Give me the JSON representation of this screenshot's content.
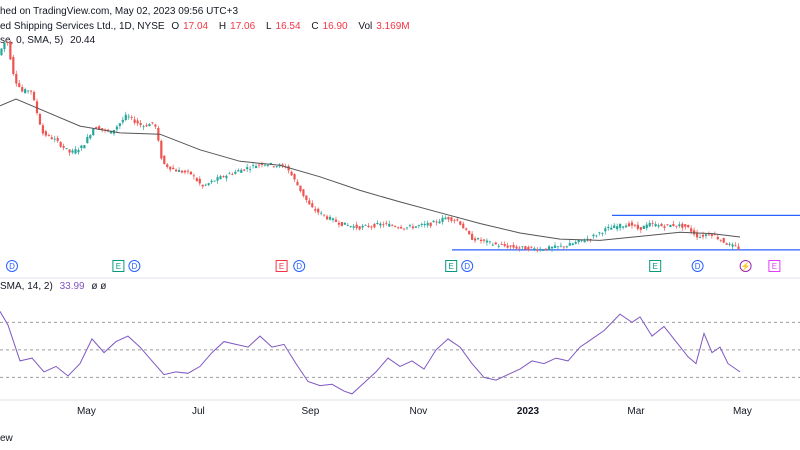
{
  "header": {
    "published": "hed on TradingView.com, May 02, 2023 09:56 UTC+3",
    "symbol": "ed Shipping Services Ltd., 1D, NYSE",
    "open_label": "O",
    "open": "17.04",
    "high_label": "H",
    "high": "17.06",
    "low_label": "L",
    "low": "16.54",
    "close_label": "C",
    "close": "16.90",
    "vol_label": "Vol",
    "vol": "3.169M",
    "ma_label": "se, 0, SMA, 5)",
    "ma_value": "20.44",
    "rsi_label": "SMA, 14, 2)",
    "rsi_value": "33.99",
    "rsi_extra": "ø ø"
  },
  "footer": {
    "text": "ew"
  },
  "colors": {
    "up": "#26a69a",
    "down": "#ef5350",
    "ma": "#555555",
    "rsi": "#7e57c2",
    "channel": "#2962ff",
    "dashed": "#9e9e9e"
  },
  "chart_data": [
    {
      "type": "candlestick",
      "x_labels": [
        "May",
        "Jul",
        "Sep",
        "Nov",
        "2023",
        "Mar",
        "May"
      ],
      "price_path": [
        {
          "t": 0.0,
          "p": 41.5
        },
        {
          "t": 0.01,
          "p": 44
        },
        {
          "t": 0.02,
          "p": 38
        },
        {
          "t": 0.03,
          "p": 36
        },
        {
          "t": 0.04,
          "p": 36.5
        },
        {
          "t": 0.055,
          "p": 30
        },
        {
          "t": 0.07,
          "p": 29
        },
        {
          "t": 0.09,
          "p": 27
        },
        {
          "t": 0.105,
          "p": 28
        },
        {
          "t": 0.12,
          "p": 31
        },
        {
          "t": 0.14,
          "p": 30
        },
        {
          "t": 0.16,
          "p": 32.5
        },
        {
          "t": 0.18,
          "p": 31
        },
        {
          "t": 0.195,
          "p": 31.5
        },
        {
          "t": 0.205,
          "p": 25.5
        },
        {
          "t": 0.22,
          "p": 24.5
        },
        {
          "t": 0.24,
          "p": 24
        },
        {
          "t": 0.255,
          "p": 22
        },
        {
          "t": 0.27,
          "p": 23
        },
        {
          "t": 0.29,
          "p": 24
        },
        {
          "t": 0.31,
          "p": 24.8
        },
        {
          "t": 0.33,
          "p": 25.5
        },
        {
          "t": 0.345,
          "p": 25.2
        },
        {
          "t": 0.36,
          "p": 25
        },
        {
          "t": 0.375,
          "p": 22
        },
        {
          "t": 0.39,
          "p": 19
        },
        {
          "t": 0.41,
          "p": 17.5
        },
        {
          "t": 0.43,
          "p": 16.5
        },
        {
          "t": 0.45,
          "p": 16
        },
        {
          "t": 0.48,
          "p": 16.5
        },
        {
          "t": 0.51,
          "p": 16
        },
        {
          "t": 0.54,
          "p": 16.5
        },
        {
          "t": 0.56,
          "p": 17.5
        },
        {
          "t": 0.575,
          "p": 17
        },
        {
          "t": 0.59,
          "p": 14.5
        },
        {
          "t": 0.62,
          "p": 13.5
        },
        {
          "t": 0.65,
          "p": 13
        },
        {
          "t": 0.68,
          "p": 12.8
        },
        {
          "t": 0.71,
          "p": 13.3
        },
        {
          "t": 0.74,
          "p": 14.5
        },
        {
          "t": 0.76,
          "p": 15.8
        },
        {
          "t": 0.775,
          "p": 16.2
        },
        {
          "t": 0.79,
          "p": 16.5
        },
        {
          "t": 0.8,
          "p": 15.8
        },
        {
          "t": 0.815,
          "p": 16.5
        },
        {
          "t": 0.83,
          "p": 16.2
        },
        {
          "t": 0.845,
          "p": 16.4
        },
        {
          "t": 0.86,
          "p": 16.1
        },
        {
          "t": 0.875,
          "p": 14.6
        },
        {
          "t": 0.89,
          "p": 15.2
        },
        {
          "t": 0.905,
          "p": 14
        },
        {
          "t": 0.915,
          "p": 13.3
        },
        {
          "t": 0.925,
          "p": 13
        }
      ],
      "moving_average": {
        "name": "SMA",
        "path": [
          {
            "t": 0.0,
            "p": 34
          },
          {
            "t": 0.02,
            "p": 35
          },
          {
            "t": 0.05,
            "p": 33.5
          },
          {
            "t": 0.1,
            "p": 31
          },
          {
            "t": 0.15,
            "p": 30
          },
          {
            "t": 0.2,
            "p": 29.8
          },
          {
            "t": 0.25,
            "p": 27.5
          },
          {
            "t": 0.3,
            "p": 25.8
          },
          {
            "t": 0.35,
            "p": 25.2
          },
          {
            "t": 0.4,
            "p": 23.5
          },
          {
            "t": 0.45,
            "p": 21.5
          },
          {
            "t": 0.5,
            "p": 19.8
          },
          {
            "t": 0.55,
            "p": 18.2
          },
          {
            "t": 0.6,
            "p": 16.6
          },
          {
            "t": 0.65,
            "p": 15.2
          },
          {
            "t": 0.7,
            "p": 14.3
          },
          {
            "t": 0.75,
            "p": 14.1
          },
          {
            "t": 0.8,
            "p": 14.7
          },
          {
            "t": 0.85,
            "p": 15.3
          },
          {
            "t": 0.89,
            "p": 15.1
          },
          {
            "t": 0.925,
            "p": 14.6
          }
        ]
      },
      "channel": {
        "upper": {
          "p": 17.8,
          "t_start": 0.765,
          "t_end": 1.0
        },
        "lower": {
          "p": 12.7,
          "t_start": 0.565,
          "t_end": 1.0
        }
      },
      "events": [
        {
          "t": 0.015,
          "label": "D",
          "kind": "dividend"
        },
        {
          "t": 0.148,
          "label": "E",
          "kind": "earnings"
        },
        {
          "t": 0.168,
          "label": "D",
          "kind": "dividend"
        },
        {
          "t": 0.352,
          "label": "E",
          "kind": "earnings-red"
        },
        {
          "t": 0.374,
          "label": "D",
          "kind": "dividend"
        },
        {
          "t": 0.564,
          "label": "E",
          "kind": "earnings"
        },
        {
          "t": 0.584,
          "label": "D",
          "kind": "dividend"
        },
        {
          "t": 0.819,
          "label": "E",
          "kind": "earnings"
        },
        {
          "t": 0.872,
          "label": "D",
          "kind": "dividend"
        },
        {
          "t": 0.932,
          "label": "⚡",
          "kind": "split"
        },
        {
          "t": 0.968,
          "label": "E",
          "kind": "earnings-future"
        }
      ],
      "ylim": [
        11.5,
        45.5
      ]
    },
    {
      "type": "line",
      "name": "RSI",
      "ylim": [
        15,
        95
      ],
      "levels": [
        70,
        50,
        30
      ],
      "path": [
        {
          "t": 0.0,
          "v": 78
        },
        {
          "t": 0.01,
          "v": 68
        },
        {
          "t": 0.025,
          "v": 42
        },
        {
          "t": 0.04,
          "v": 44
        },
        {
          "t": 0.055,
          "v": 34
        },
        {
          "t": 0.07,
          "v": 38
        },
        {
          "t": 0.085,
          "v": 31
        },
        {
          "t": 0.1,
          "v": 40
        },
        {
          "t": 0.115,
          "v": 58
        },
        {
          "t": 0.13,
          "v": 48
        },
        {
          "t": 0.145,
          "v": 56
        },
        {
          "t": 0.16,
          "v": 60
        },
        {
          "t": 0.175,
          "v": 52
        },
        {
          "t": 0.19,
          "v": 42
        },
        {
          "t": 0.205,
          "v": 32
        },
        {
          "t": 0.22,
          "v": 34
        },
        {
          "t": 0.235,
          "v": 33
        },
        {
          "t": 0.25,
          "v": 38
        },
        {
          "t": 0.265,
          "v": 48
        },
        {
          "t": 0.28,
          "v": 56
        },
        {
          "t": 0.295,
          "v": 54
        },
        {
          "t": 0.31,
          "v": 52
        },
        {
          "t": 0.325,
          "v": 60
        },
        {
          "t": 0.34,
          "v": 52
        },
        {
          "t": 0.355,
          "v": 54
        },
        {
          "t": 0.37,
          "v": 40
        },
        {
          "t": 0.385,
          "v": 27
        },
        {
          "t": 0.4,
          "v": 24
        },
        {
          "t": 0.415,
          "v": 25
        },
        {
          "t": 0.43,
          "v": 20
        },
        {
          "t": 0.44,
          "v": 18
        },
        {
          "t": 0.455,
          "v": 26
        },
        {
          "t": 0.47,
          "v": 34
        },
        {
          "t": 0.485,
          "v": 44
        },
        {
          "t": 0.5,
          "v": 38
        },
        {
          "t": 0.515,
          "v": 42
        },
        {
          "t": 0.53,
          "v": 36
        },
        {
          "t": 0.545,
          "v": 50
        },
        {
          "t": 0.56,
          "v": 58
        },
        {
          "t": 0.575,
          "v": 52
        },
        {
          "t": 0.59,
          "v": 40
        },
        {
          "t": 0.605,
          "v": 30
        },
        {
          "t": 0.62,
          "v": 28
        },
        {
          "t": 0.635,
          "v": 32
        },
        {
          "t": 0.65,
          "v": 36
        },
        {
          "t": 0.665,
          "v": 42
        },
        {
          "t": 0.68,
          "v": 40
        },
        {
          "t": 0.695,
          "v": 44
        },
        {
          "t": 0.71,
          "v": 42
        },
        {
          "t": 0.725,
          "v": 52
        },
        {
          "t": 0.74,
          "v": 58
        },
        {
          "t": 0.755,
          "v": 64
        },
        {
          "t": 0.765,
          "v": 70
        },
        {
          "t": 0.775,
          "v": 76
        },
        {
          "t": 0.79,
          "v": 70
        },
        {
          "t": 0.8,
          "v": 74
        },
        {
          "t": 0.815,
          "v": 60
        },
        {
          "t": 0.83,
          "v": 67
        },
        {
          "t": 0.845,
          "v": 56
        },
        {
          "t": 0.86,
          "v": 45
        },
        {
          "t": 0.87,
          "v": 40
        },
        {
          "t": 0.88,
          "v": 62
        },
        {
          "t": 0.89,
          "v": 48
        },
        {
          "t": 0.9,
          "v": 52
        },
        {
          "t": 0.91,
          "v": 40
        },
        {
          "t": 0.925,
          "v": 34
        }
      ]
    }
  ]
}
